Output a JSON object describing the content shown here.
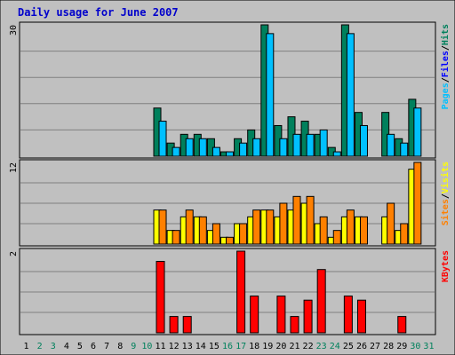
{
  "chart_data": {
    "type": "bar",
    "title": "Daily usage for June 2007",
    "days": [
      "1",
      "2",
      "3",
      "4",
      "5",
      "6",
      "7",
      "8",
      "9",
      "10",
      "11",
      "12",
      "13",
      "14",
      "15",
      "16",
      "17",
      "18",
      "19",
      "20",
      "21",
      "22",
      "23",
      "24",
      "25",
      "26",
      "27",
      "28",
      "29",
      "30",
      "31"
    ],
    "weekend_days": [
      "2",
      "3",
      "9",
      "10",
      "16",
      "17",
      "23",
      "24",
      "30",
      "31"
    ],
    "colors": {
      "background": "#c0c0c0",
      "grid": "#808080",
      "border": "#000000",
      "title_text": "#0000cc",
      "weekday_label": "#000000",
      "weekend_label": "#00805c",
      "hits": "#00805c",
      "files": "#00c0ff",
      "pages": "#00c0ff",
      "visits": "#ffff00",
      "sites": "#ff8000",
      "kbytes": "#ff0000"
    },
    "panels": [
      {
        "id": "hits-files-pages",
        "ymax_label": "30",
        "ylim": [
          0,
          30
        ],
        "legend": [
          {
            "text": "Pages",
            "color": "#00c0ff"
          },
          {
            "text": "/",
            "color": "#000000"
          },
          {
            "text": "Files",
            "color": "#0000ff"
          },
          {
            "text": "/",
            "color": "#000000"
          },
          {
            "text": "Hits",
            "color": "#00805c"
          }
        ],
        "series": [
          {
            "key": "hits",
            "color": "#00805c",
            "values": [
              0,
              0,
              0,
              0,
              0,
              0,
              0,
              0,
              0,
              0,
              11,
              3,
              5,
              5,
              4,
              1,
              4,
              6,
              30,
              7,
              9,
              8,
              5,
              2,
              30,
              10,
              0,
              10,
              4,
              13,
              0
            ]
          },
          {
            "key": "files",
            "color": "#00c0ff",
            "values": [
              0,
              0,
              0,
              0,
              0,
              0,
              0,
              0,
              0,
              0,
              8,
              2,
              4,
              4,
              2,
              1,
              3,
              4,
              28,
              4,
              5,
              5,
              6,
              1,
              28,
              7,
              0,
              5,
              3,
              11,
              0
            ]
          }
        ]
      },
      {
        "id": "visits-sites",
        "ymax_label": "12",
        "ylim": [
          0,
          12
        ],
        "legend": [
          {
            "text": "Sites",
            "color": "#ff8000"
          },
          {
            "text": "/",
            "color": "#000000"
          },
          {
            "text": "Visits",
            "color": "#ffff00"
          }
        ],
        "series": [
          {
            "key": "visits",
            "color": "#ffff00",
            "values": [
              0,
              0,
              0,
              0,
              0,
              0,
              0,
              0,
              0,
              0,
              5,
              2,
              4,
              4,
              2,
              1,
              3,
              4,
              5,
              4,
              5,
              6,
              3,
              1,
              4,
              4,
              0,
              4,
              2,
              11,
              0
            ]
          },
          {
            "key": "sites",
            "color": "#ff8000",
            "values": [
              0,
              0,
              0,
              0,
              0,
              0,
              0,
              0,
              0,
              0,
              5,
              2,
              5,
              4,
              3,
              1,
              3,
              5,
              5,
              6,
              7,
              7,
              4,
              2,
              5,
              4,
              0,
              6,
              3,
              12,
              0
            ]
          }
        ]
      },
      {
        "id": "kbytes",
        "ymax_label": "2",
        "ylim": [
          0,
          2
        ],
        "legend": [
          {
            "text": "KBytes",
            "color": "#ff0000"
          }
        ],
        "series": [
          {
            "key": "kbytes",
            "color": "#ff0000",
            "values": [
              0,
              0,
              0,
              0,
              0,
              0,
              0,
              0,
              0,
              0,
              1.75,
              0.4,
              0.4,
              0,
              0,
              0,
              2.0,
              0.9,
              0,
              0.9,
              0.4,
              0.8,
              1.55,
              0,
              0.9,
              0.8,
              0,
              0,
              0.4,
              0,
              0
            ]
          }
        ]
      }
    ]
  }
}
